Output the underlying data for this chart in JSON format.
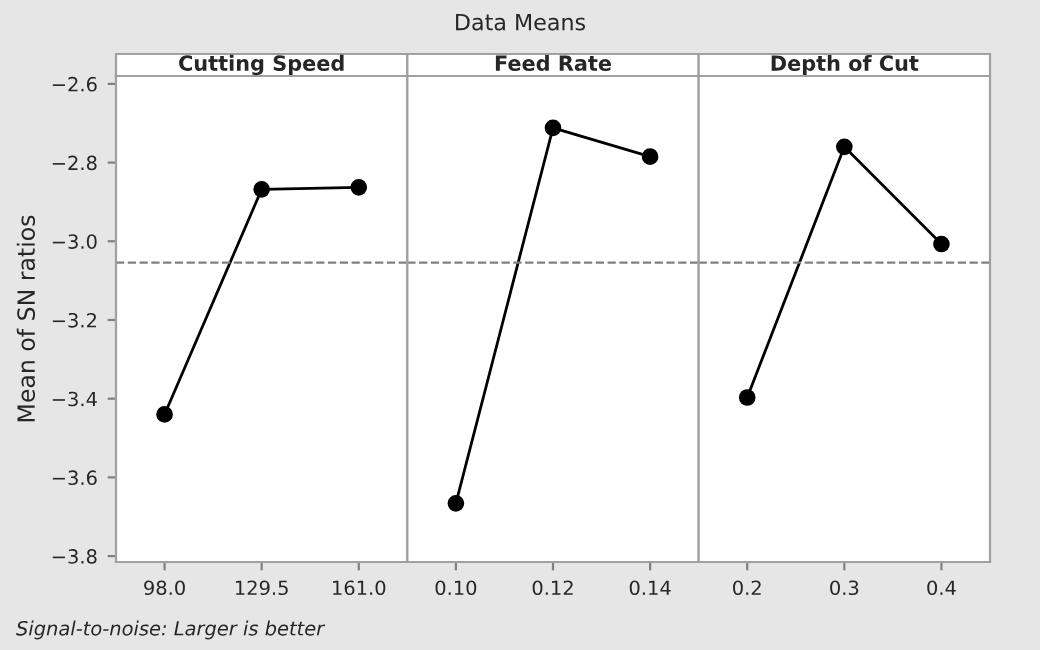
{
  "chart_data": [
    {
      "type": "line",
      "title": "Cutting Speed",
      "ylabel": "Mean of SN ratios",
      "annotations": [
        "Data Means",
        "Signal-to-noise: Larger is better"
      ],
      "categories": [
        "98.0",
        "129.5",
        "161.0"
      ],
      "values": [
        -3.44,
        -2.868,
        -2.863
      ],
      "color": "#000000",
      "marker": "circle",
      "line_style": "solid",
      "ylim": [
        -3.815,
        -2.58
      ],
      "yticks": [
        {
          "value": -2.6,
          "label": "−2.6"
        },
        {
          "value": -2.8,
          "label": "−2.8"
        },
        {
          "value": -3.0,
          "label": "−3.0"
        },
        {
          "value": -3.2,
          "label": "−3.2"
        },
        {
          "value": -3.4,
          "label": "−3.4"
        },
        {
          "value": -3.6,
          "label": "−3.6"
        },
        {
          "value": -3.8,
          "label": "−3.8"
        }
      ],
      "ref_lines": [
        {
          "axis": "y",
          "value": -3.054,
          "color": "#808080",
          "line_style": "dashed"
        }
      ]
    },
    {
      "type": "line",
      "title": "Feed Rate",
      "categories": [
        "0.10",
        "0.12",
        "0.14"
      ],
      "values": [
        -3.666,
        -2.712,
        -2.785
      ],
      "color": "#000000",
      "marker": "circle",
      "line_style": "solid",
      "ylim": [
        -3.815,
        -2.58
      ],
      "tick_labels": "x",
      "ref_lines": [
        {
          "axis": "y",
          "value": -3.054,
          "color": "#808080",
          "line_style": "dashed"
        }
      ]
    },
    {
      "type": "line",
      "title": "Depth of Cut",
      "categories": [
        "0.2",
        "0.3",
        "0.4"
      ],
      "values": [
        -3.397,
        -2.76,
        -3.007
      ],
      "color": "#000000",
      "marker": "circle",
      "line_style": "solid",
      "ylim": [
        -3.815,
        -2.58
      ],
      "tick_labels": "x",
      "ref_lines": [
        {
          "axis": "y",
          "value": -3.054,
          "color": "#808080",
          "line_style": "dashed"
        }
      ]
    }
  ]
}
